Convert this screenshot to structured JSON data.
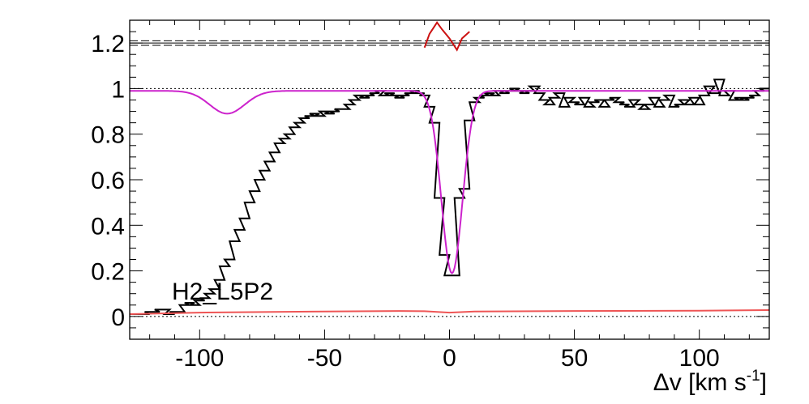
{
  "chart_data": {
    "type": "line",
    "xlabel": "Δv [km s",
    "xlabel_sup": "-1",
    "xlabel_close": "]",
    "ylabel": "",
    "xlim": [
      -128,
      128
    ],
    "ylim": [
      -0.1,
      1.3
    ],
    "x_ticks": [
      -100,
      -50,
      0,
      50,
      100
    ],
    "x_tick_labels": [
      "-100",
      "-50",
      "0",
      "50",
      "100"
    ],
    "y_ticks": [
      0,
      0.2,
      0.4,
      0.6,
      0.8,
      1,
      1.2
    ],
    "y_tick_labels": [
      "0",
      "0.2",
      "0.4",
      "0.6",
      "0.8",
      "1",
      "1.2"
    ],
    "annotation": "H2_L5P2",
    "grid": false,
    "reference_lines": {
      "dotted": [
        1.0,
        0.0
      ],
      "dashed": [
        1.2,
        1.19,
        1.21
      ]
    },
    "colors": {
      "spectrum": "#000000",
      "model": "#cc22cc",
      "error": "#ee5555",
      "residual": "#cc1111",
      "reference": "#000000"
    },
    "series": [
      {
        "type": "step",
        "color": "#000000",
        "x": [
          -128,
          -124,
          -122,
          -120,
          -118,
          -116,
          -114,
          -112,
          -110,
          -108,
          -106,
          -104,
          -102,
          -100,
          -98,
          -96,
          -94,
          -92,
          -90,
          -88,
          -86,
          -84,
          -82,
          -80,
          -78,
          -76,
          -74,
          -72,
          -70,
          -68,
          -66,
          -64,
          -62,
          -60,
          -58,
          -56,
          -54,
          -52,
          -50,
          -48,
          -46,
          -44,
          -42,
          -40,
          -38,
          -36,
          -34,
          -32,
          -30,
          -28,
          -26,
          -24,
          -22,
          -20,
          -18,
          -16,
          -14,
          -12,
          -10,
          -8,
          -6,
          -4,
          -2,
          0,
          2,
          4,
          6,
          8,
          10,
          12,
          14,
          16,
          18,
          20,
          22,
          24,
          26,
          28,
          30,
          32,
          34,
          36,
          38,
          40,
          42,
          44,
          46,
          48,
          50,
          52,
          54,
          56,
          58,
          60,
          62,
          64,
          66,
          68,
          70,
          72,
          74,
          76,
          78,
          80,
          82,
          84,
          86,
          88,
          90,
          92,
          94,
          96,
          98,
          100,
          102,
          104,
          106,
          108,
          110,
          112,
          114,
          116,
          118,
          120,
          122,
          124
        ],
        "y": [
          0.01,
          0.01,
          0.02,
          0.02,
          0.03,
          0.03,
          0.01,
          0.02,
          0.02,
          0.05,
          0.06,
          0.05,
          0.07,
          0.08,
          0.1,
          0.12,
          0.16,
          0.22,
          0.25,
          0.33,
          0.38,
          0.43,
          0.5,
          0.55,
          0.6,
          0.64,
          0.68,
          0.72,
          0.76,
          0.78,
          0.8,
          0.83,
          0.85,
          0.87,
          0.88,
          0.89,
          0.88,
          0.9,
          0.89,
          0.9,
          0.91,
          0.91,
          0.93,
          0.95,
          0.97,
          0.96,
          0.97,
          0.98,
          0.99,
          0.97,
          0.98,
          0.97,
          0.96,
          0.97,
          0.98,
          0.99,
          0.98,
          0.97,
          0.92,
          0.85,
          0.52,
          0.27,
          0.18,
          0.18,
          0.52,
          0.56,
          0.86,
          0.94,
          0.96,
          0.97,
          0.98,
          0.97,
          0.99,
          0.98,
          0.99,
          1.0,
          0.99,
          0.98,
          0.99,
          1.01,
          0.98,
          0.95,
          0.93,
          0.96,
          0.98,
          0.92,
          0.96,
          0.94,
          0.93,
          0.96,
          0.92,
          0.94,
          0.95,
          0.92,
          0.95,
          0.96,
          0.94,
          0.93,
          0.92,
          0.95,
          0.93,
          0.91,
          0.93,
          0.96,
          0.92,
          0.95,
          0.97,
          0.92,
          0.93,
          0.95,
          0.93,
          0.96,
          0.93,
          0.97,
          1.01,
          0.98,
          1.04,
          0.97,
          0.99,
          0.95,
          0.96,
          0.95,
          0.96,
          0.97,
          0.99,
          1.0
        ]
      },
      {
        "type": "model",
        "color": "#cc22cc",
        "continuum": 0.99,
        "components": [
          {
            "center": -89,
            "depth": 0.1,
            "width": 7
          },
          {
            "center": 1,
            "depth": 0.8,
            "width": 4.2
          }
        ]
      },
      {
        "type": "error",
        "color": "#ee5555",
        "x": [
          -128,
          -100,
          -50,
          -20,
          -10,
          0,
          10,
          50,
          100,
          128
        ],
        "y": [
          0.01,
          0.017,
          0.022,
          0.024,
          0.023,
          0.017,
          0.022,
          0.024,
          0.025,
          0.028
        ]
      },
      {
        "type": "residual",
        "color": "#cc1111",
        "x": [
          -10,
          -8,
          -5,
          -3,
          0,
          3,
          5,
          8
        ],
        "y": [
          1.18,
          1.24,
          1.29,
          1.26,
          1.22,
          1.17,
          1.22,
          1.25
        ]
      }
    ]
  }
}
